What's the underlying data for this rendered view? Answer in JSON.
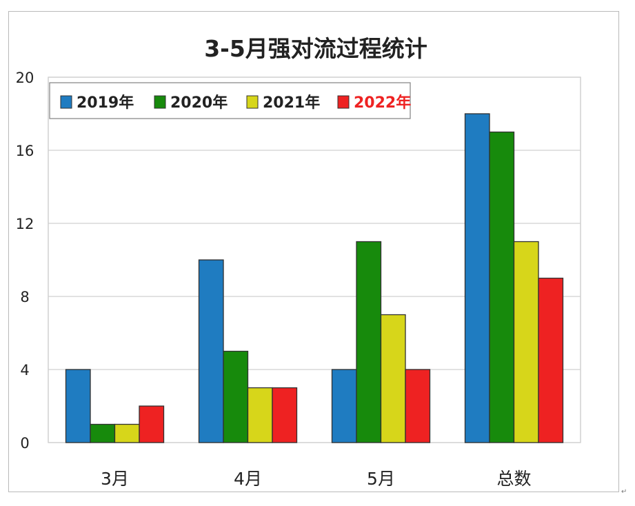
{
  "chart_data": {
    "type": "bar",
    "title": "3-5月强对流过程统计",
    "xlabel": "",
    "ylabel": "",
    "categories": [
      "3月",
      "4月",
      "5月",
      "总数"
    ],
    "series": [
      {
        "name": "2019年",
        "color": "#1f7cc1",
        "values": [
          4,
          10,
          4,
          18
        ]
      },
      {
        "name": "2020年",
        "color": "#178a0c",
        "values": [
          1,
          5,
          11,
          17
        ]
      },
      {
        "name": "2021年",
        "color": "#d7d61a",
        "values": [
          1,
          3,
          7,
          11
        ]
      },
      {
        "name": "2022年",
        "color": "#ee2222",
        "values": [
          2,
          3,
          4,
          9
        ]
      }
    ],
    "ylim": [
      0,
      20
    ],
    "yticks": [
      0,
      4,
      8,
      12,
      16,
      20
    ],
    "ytick_labels": [
      "0",
      "4",
      "8",
      "12",
      "16",
      "20"
    ],
    "grid": true,
    "legend_position": "top-left",
    "legend_text_colors": [
      "#222222",
      "#222222",
      "#222222",
      "#ee2222"
    ]
  },
  "corner_mark": "↵"
}
